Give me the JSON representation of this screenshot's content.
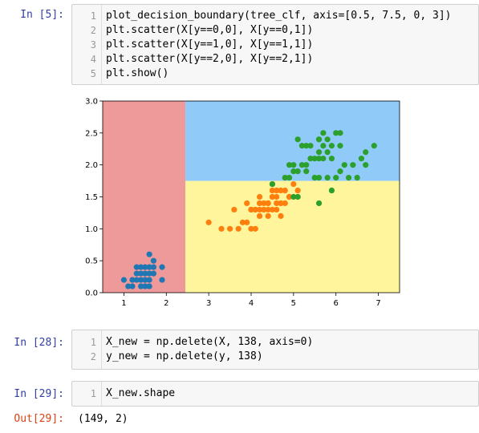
{
  "cells": [
    {
      "prompt": "In  [5]:",
      "lines": [
        {
          "n": "1",
          "text": "plot_decision_boundary(tree_clf, axis=[0.5, 7.5, 0, 3])"
        },
        {
          "n": "2",
          "text": "plt.scatter(X[y==0,0], X[y==0,1])"
        },
        {
          "n": "3",
          "text": "plt.scatter(X[y==1,0], X[y==1,1])"
        },
        {
          "n": "4",
          "text": "plt.scatter(X[y==2,0], X[y==2,1])"
        },
        {
          "n": "5",
          "text": "plt.show()"
        }
      ]
    },
    {
      "prompt": "In  [28]:",
      "lines": [
        {
          "n": "1",
          "text": "X_new = np.delete(X, 138, axis=0)"
        },
        {
          "n": "2",
          "text": "y_new = np.delete(y, 138)"
        }
      ]
    },
    {
      "prompt": "In  [29]:",
      "lines": [
        {
          "n": "1",
          "text": "X_new.shape"
        }
      ],
      "out_prompt": "Out[29]:",
      "output": "(149, 2)"
    }
  ],
  "chart_data": {
    "type": "scatter",
    "xlim": [
      0.5,
      7.5
    ],
    "ylim": [
      0,
      3
    ],
    "xticks": [
      "1",
      "2",
      "3",
      "4",
      "5",
      "6",
      "7"
    ],
    "yticks": [
      "0.0",
      "0.5",
      "1.0",
      "1.5",
      "2.0",
      "2.5",
      "3.0"
    ],
    "regions": [
      {
        "class": 0,
        "x": [
          0.5,
          2.45
        ],
        "y": [
          0,
          3
        ],
        "color": "#ef9a9a"
      },
      {
        "class": 1,
        "x": [
          2.45,
          7.5
        ],
        "y": [
          0,
          1.75
        ],
        "color": "#fff59d"
      },
      {
        "class": 2,
        "x": [
          2.45,
          7.5
        ],
        "y": [
          1.75,
          3
        ],
        "color": "#90caf9"
      }
    ],
    "series": [
      {
        "color": "#1f77b4",
        "points": [
          [
            1.4,
            0.2
          ],
          [
            1.3,
            0.2
          ],
          [
            1.5,
            0.2
          ],
          [
            1.7,
            0.4
          ],
          [
            1.4,
            0.3
          ],
          [
            1.5,
            0.1
          ],
          [
            1.6,
            0.2
          ],
          [
            1.1,
            0.1
          ],
          [
            1.2,
            0.2
          ],
          [
            1.0,
            0.2
          ],
          [
            1.7,
            0.5
          ],
          [
            1.9,
            0.2
          ],
          [
            1.6,
            0.4
          ],
          [
            1.5,
            0.4
          ],
          [
            1.4,
            0.1
          ],
          [
            1.6,
            0.6
          ],
          [
            1.9,
            0.4
          ],
          [
            1.3,
            0.3
          ],
          [
            1.5,
            0.3
          ],
          [
            1.7,
            0.3
          ],
          [
            1.6,
            0.1
          ],
          [
            1.2,
            0.1
          ],
          [
            1.3,
            0.4
          ],
          [
            1.5,
            0.2
          ],
          [
            1.6,
            0.3
          ],
          [
            1.4,
            0.4
          ]
        ]
      },
      {
        "color": "#ff7f0e",
        "points": [
          [
            4.7,
            1.4
          ],
          [
            4.5,
            1.5
          ],
          [
            4.9,
            1.5
          ],
          [
            4.0,
            1.3
          ],
          [
            4.6,
            1.5
          ],
          [
            4.5,
            1.3
          ],
          [
            4.7,
            1.6
          ],
          [
            3.3,
            1.0
          ],
          [
            4.6,
            1.3
          ],
          [
            3.9,
            1.4
          ],
          [
            3.5,
            1.0
          ],
          [
            4.2,
            1.5
          ],
          [
            4.0,
            1.0
          ],
          [
            4.7,
            1.4
          ],
          [
            3.6,
            1.3
          ],
          [
            4.4,
            1.4
          ],
          [
            4.1,
            1.0
          ],
          [
            4.5,
            1.5
          ],
          [
            3.9,
            1.1
          ],
          [
            4.8,
            1.8
          ],
          [
            4.0,
            1.3
          ],
          [
            4.9,
            1.5
          ],
          [
            4.7,
            1.2
          ],
          [
            4.3,
            1.3
          ],
          [
            4.4,
            1.4
          ],
          [
            4.8,
            1.4
          ],
          [
            5.0,
            1.7
          ],
          [
            3.8,
            1.1
          ],
          [
            3.7,
            1.0
          ],
          [
            5.1,
            1.6
          ],
          [
            4.5,
            1.6
          ],
          [
            4.4,
            1.3
          ],
          [
            4.1,
            1.3
          ],
          [
            4.0,
            1.3
          ],
          [
            4.4,
            1.2
          ],
          [
            4.6,
            1.4
          ],
          [
            4.2,
            1.2
          ],
          [
            4.2,
            1.3
          ],
          [
            4.3,
            1.3
          ],
          [
            3.0,
            1.1
          ],
          [
            4.1,
            1.3
          ],
          [
            4.9,
            1.5
          ],
          [
            4.5,
            1.7
          ],
          [
            5.1,
            1.5
          ],
          [
            4.8,
            1.6
          ],
          [
            4.2,
            1.4
          ],
          [
            4.6,
            1.6
          ],
          [
            4.3,
            1.4
          ]
        ]
      },
      {
        "color": "#2ca02c",
        "points": [
          [
            6.0,
            2.5
          ],
          [
            5.1,
            1.9
          ],
          [
            5.9,
            2.1
          ],
          [
            5.6,
            1.8
          ],
          [
            5.8,
            2.2
          ],
          [
            6.6,
            2.1
          ],
          [
            4.5,
            1.7
          ],
          [
            6.3,
            1.8
          ],
          [
            5.8,
            1.8
          ],
          [
            6.1,
            2.5
          ],
          [
            5.3,
            1.9
          ],
          [
            5.5,
            2.1
          ],
          [
            5.0,
            2.0
          ],
          [
            5.1,
            2.4
          ],
          [
            5.3,
            2.3
          ],
          [
            5.5,
            1.8
          ],
          [
            6.7,
            2.2
          ],
          [
            6.9,
            2.3
          ],
          [
            5.0,
            1.5
          ],
          [
            5.7,
            2.3
          ],
          [
            4.9,
            2.0
          ],
          [
            6.7,
            2.0
          ],
          [
            4.9,
            1.8
          ],
          [
            5.7,
            2.1
          ],
          [
            6.0,
            1.8
          ],
          [
            4.8,
            1.8
          ],
          [
            5.6,
            2.1
          ],
          [
            6.1,
            1.9
          ],
          [
            6.4,
            2.0
          ],
          [
            5.6,
            2.2
          ],
          [
            5.1,
            1.5
          ],
          [
            5.6,
            1.4
          ],
          [
            6.1,
            2.3
          ],
          [
            5.6,
            2.4
          ],
          [
            5.5,
            1.8
          ],
          [
            5.4,
            2.1
          ],
          [
            5.6,
            2.4
          ],
          [
            5.9,
            2.3
          ],
          [
            5.7,
            2.5
          ],
          [
            5.2,
            2.3
          ],
          [
            5.4,
            2.3
          ],
          [
            5.2,
            2.0
          ],
          [
            5.9,
            1.6
          ],
          [
            5.0,
            1.9
          ],
          [
            5.8,
            2.4
          ],
          [
            6.2,
            2.0
          ],
          [
            5.3,
            2.0
          ],
          [
            6.5,
            1.8
          ]
        ]
      }
    ]
  }
}
